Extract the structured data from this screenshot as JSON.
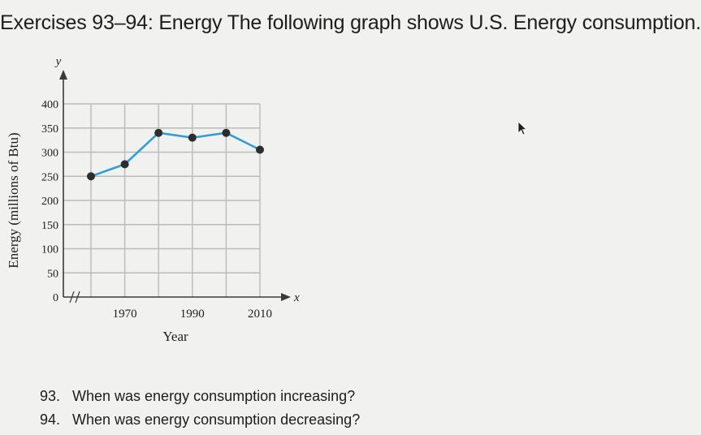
{
  "header": {
    "title": "Exercises 93–94: Energy The following graph shows U.S. Energy consumption."
  },
  "chart_data": {
    "type": "line",
    "title": "",
    "xlabel": "Year",
    "ylabel": "Energy (millions of Btu)",
    "x_axis_letter": "x",
    "y_axis_letter": "y",
    "x_ticks": [
      "1970",
      "1990",
      "2010"
    ],
    "x_tick_values": [
      1970,
      1990,
      2010
    ],
    "y_ticks": [
      "0",
      "50",
      "100",
      "150",
      "200",
      "250",
      "300",
      "350",
      "400"
    ],
    "y_tick_values": [
      0,
      50,
      100,
      150,
      200,
      250,
      300,
      350,
      400
    ],
    "xlim": [
      1960,
      2010
    ],
    "ylim": [
      0,
      400
    ],
    "x_break": true,
    "grid": true,
    "series": [
      {
        "name": "U.S. Energy consumption",
        "color": "#2f9fd8",
        "x": [
          1960,
          1970,
          1980,
          1990,
          2000,
          2010
        ],
        "values": [
          250,
          275,
          340,
          330,
          340,
          305
        ]
      }
    ]
  },
  "questions": [
    {
      "number": "93.",
      "text": "When was energy consumption increasing?"
    },
    {
      "number": "94.",
      "text": "When was energy consumption decreasing?"
    }
  ]
}
